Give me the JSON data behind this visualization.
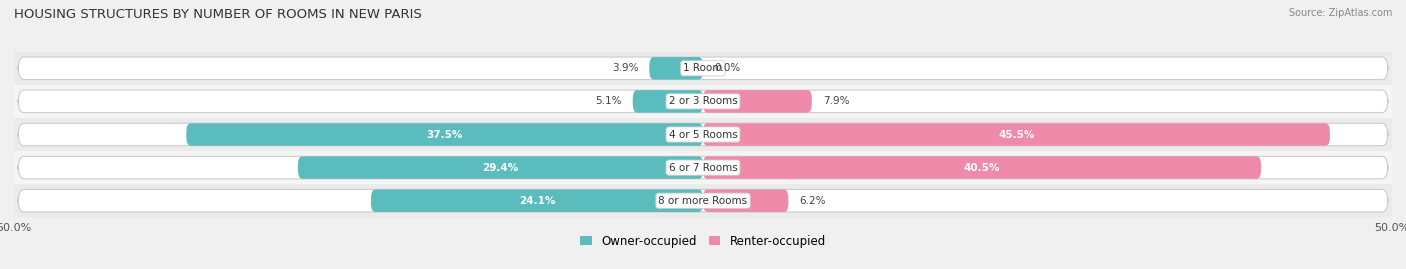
{
  "title": "HOUSING STRUCTURES BY NUMBER OF ROOMS IN NEW PARIS",
  "source": "Source: ZipAtlas.com",
  "categories": [
    "1 Room",
    "2 or 3 Rooms",
    "4 or 5 Rooms",
    "6 or 7 Rooms",
    "8 or more Rooms"
  ],
  "owner_values": [
    3.9,
    5.1,
    37.5,
    29.4,
    24.1
  ],
  "renter_values": [
    0.0,
    7.9,
    45.5,
    40.5,
    6.2
  ],
  "owner_color": "#5bbcbd",
  "renter_color": "#f08aaa",
  "bg_bar_color": "#e8e8e8",
  "bg_bar_edge": "#d0d0d0",
  "row_bg_color": "#f5f5f5",
  "axis_limit": 50.0,
  "title_fontsize": 9.5,
  "label_fontsize": 7.5,
  "tick_fontsize": 8,
  "legend_fontsize": 8.5,
  "source_fontsize": 7
}
